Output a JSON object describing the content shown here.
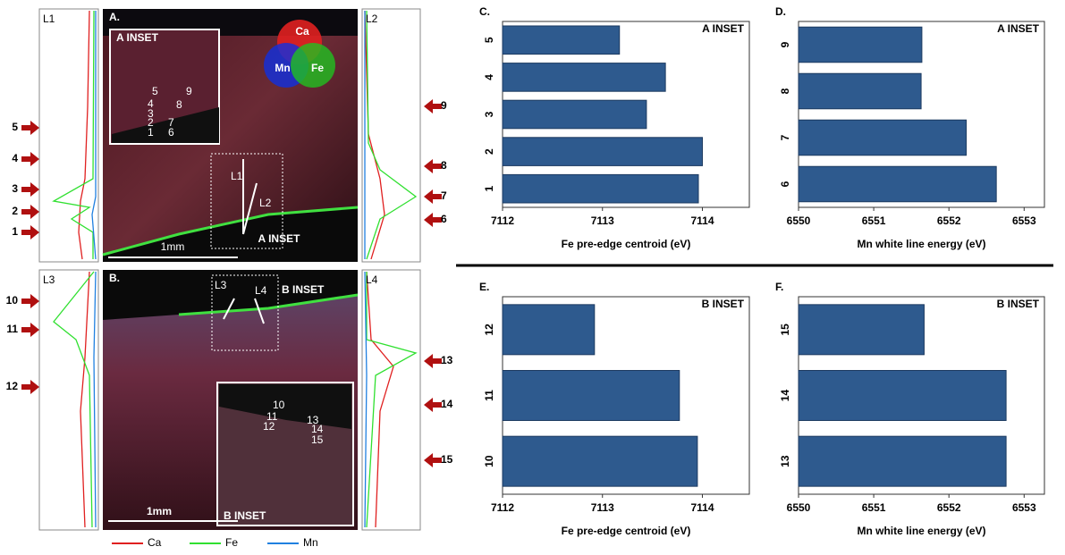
{
  "figure": {
    "panel_a": {
      "label": "A.",
      "inset_label": "A INSET",
      "inset_title": "A INSET",
      "scale": "1mm",
      "lines": [
        "L1",
        "L2"
      ],
      "points": [
        "5",
        "9",
        "4",
        "8",
        "3",
        "2",
        "7",
        "1",
        "6"
      ],
      "venn": [
        "Ca",
        "Mn",
        "Fe"
      ]
    },
    "panel_b": {
      "label": "B.",
      "inset_label": "B INSET",
      "inset_title": "B INSET",
      "scale": "1mm",
      "lines": [
        "L3",
        "L4"
      ],
      "points": [
        "10",
        "11",
        "12",
        "13",
        "14",
        "15"
      ]
    },
    "profiles": [
      "L1",
      "L2",
      "L3",
      "L4"
    ],
    "left_arrows": [
      "5",
      "4",
      "3",
      "2",
      "1",
      "10",
      "11",
      "12"
    ],
    "right_arrows": [
      "9",
      "8",
      "7",
      "6",
      "13",
      "14",
      "15"
    ],
    "legend": [
      {
        "name": "Ca",
        "color": "#e02020"
      },
      {
        "name": "Fe",
        "color": "#30e030"
      },
      {
        "name": "Mn",
        "color": "#2080e0"
      }
    ]
  },
  "chart_data": [
    {
      "type": "bar",
      "panel_label": "C.",
      "inset": "A INSET",
      "x_label": "Fe pre-edge centroid (eV)",
      "categories": [
        "1",
        "2",
        "3",
        "4",
        "5"
      ],
      "values": [
        7113.96,
        7114.0,
        7113.44,
        7113.63,
        7113.17
      ],
      "color": "#2e5a8e",
      "xlim": [
        7112,
        7114.47
      ],
      "xticks": [
        7112,
        7113,
        7114
      ]
    },
    {
      "type": "bar",
      "panel_label": "D.",
      "inset": "A INSET",
      "x_label": "Mn white line energy (eV)",
      "categories": [
        "6",
        "7",
        "8",
        "9"
      ],
      "values": [
        6552.63,
        6552.23,
        6551.63,
        6551.64
      ],
      "color": "#2e5a8e",
      "xlim": [
        6550,
        6553.27
      ],
      "xticks": [
        6550,
        6551,
        6552,
        6553
      ]
    },
    {
      "type": "bar",
      "panel_label": "E.",
      "inset": "B INSET",
      "x_label": "Fe pre-edge centroid (eV)",
      "categories": [
        "10",
        "11",
        "12"
      ],
      "values": [
        7113.95,
        7113.77,
        7112.92
      ],
      "color": "#2e5a8e",
      "xlim": [
        7112,
        7114.47
      ],
      "xticks": [
        7112,
        7113,
        7114
      ]
    },
    {
      "type": "bar",
      "panel_label": "F.",
      "inset": "B INSET",
      "x_label": "Mn white line energy (eV)",
      "categories": [
        "13",
        "14",
        "15"
      ],
      "values": [
        6552.76,
        6552.76,
        6551.67
      ],
      "color": "#2e5a8e",
      "xlim": [
        6550,
        6553.27
      ],
      "xticks": [
        6550,
        6551,
        6552,
        6553
      ]
    }
  ]
}
